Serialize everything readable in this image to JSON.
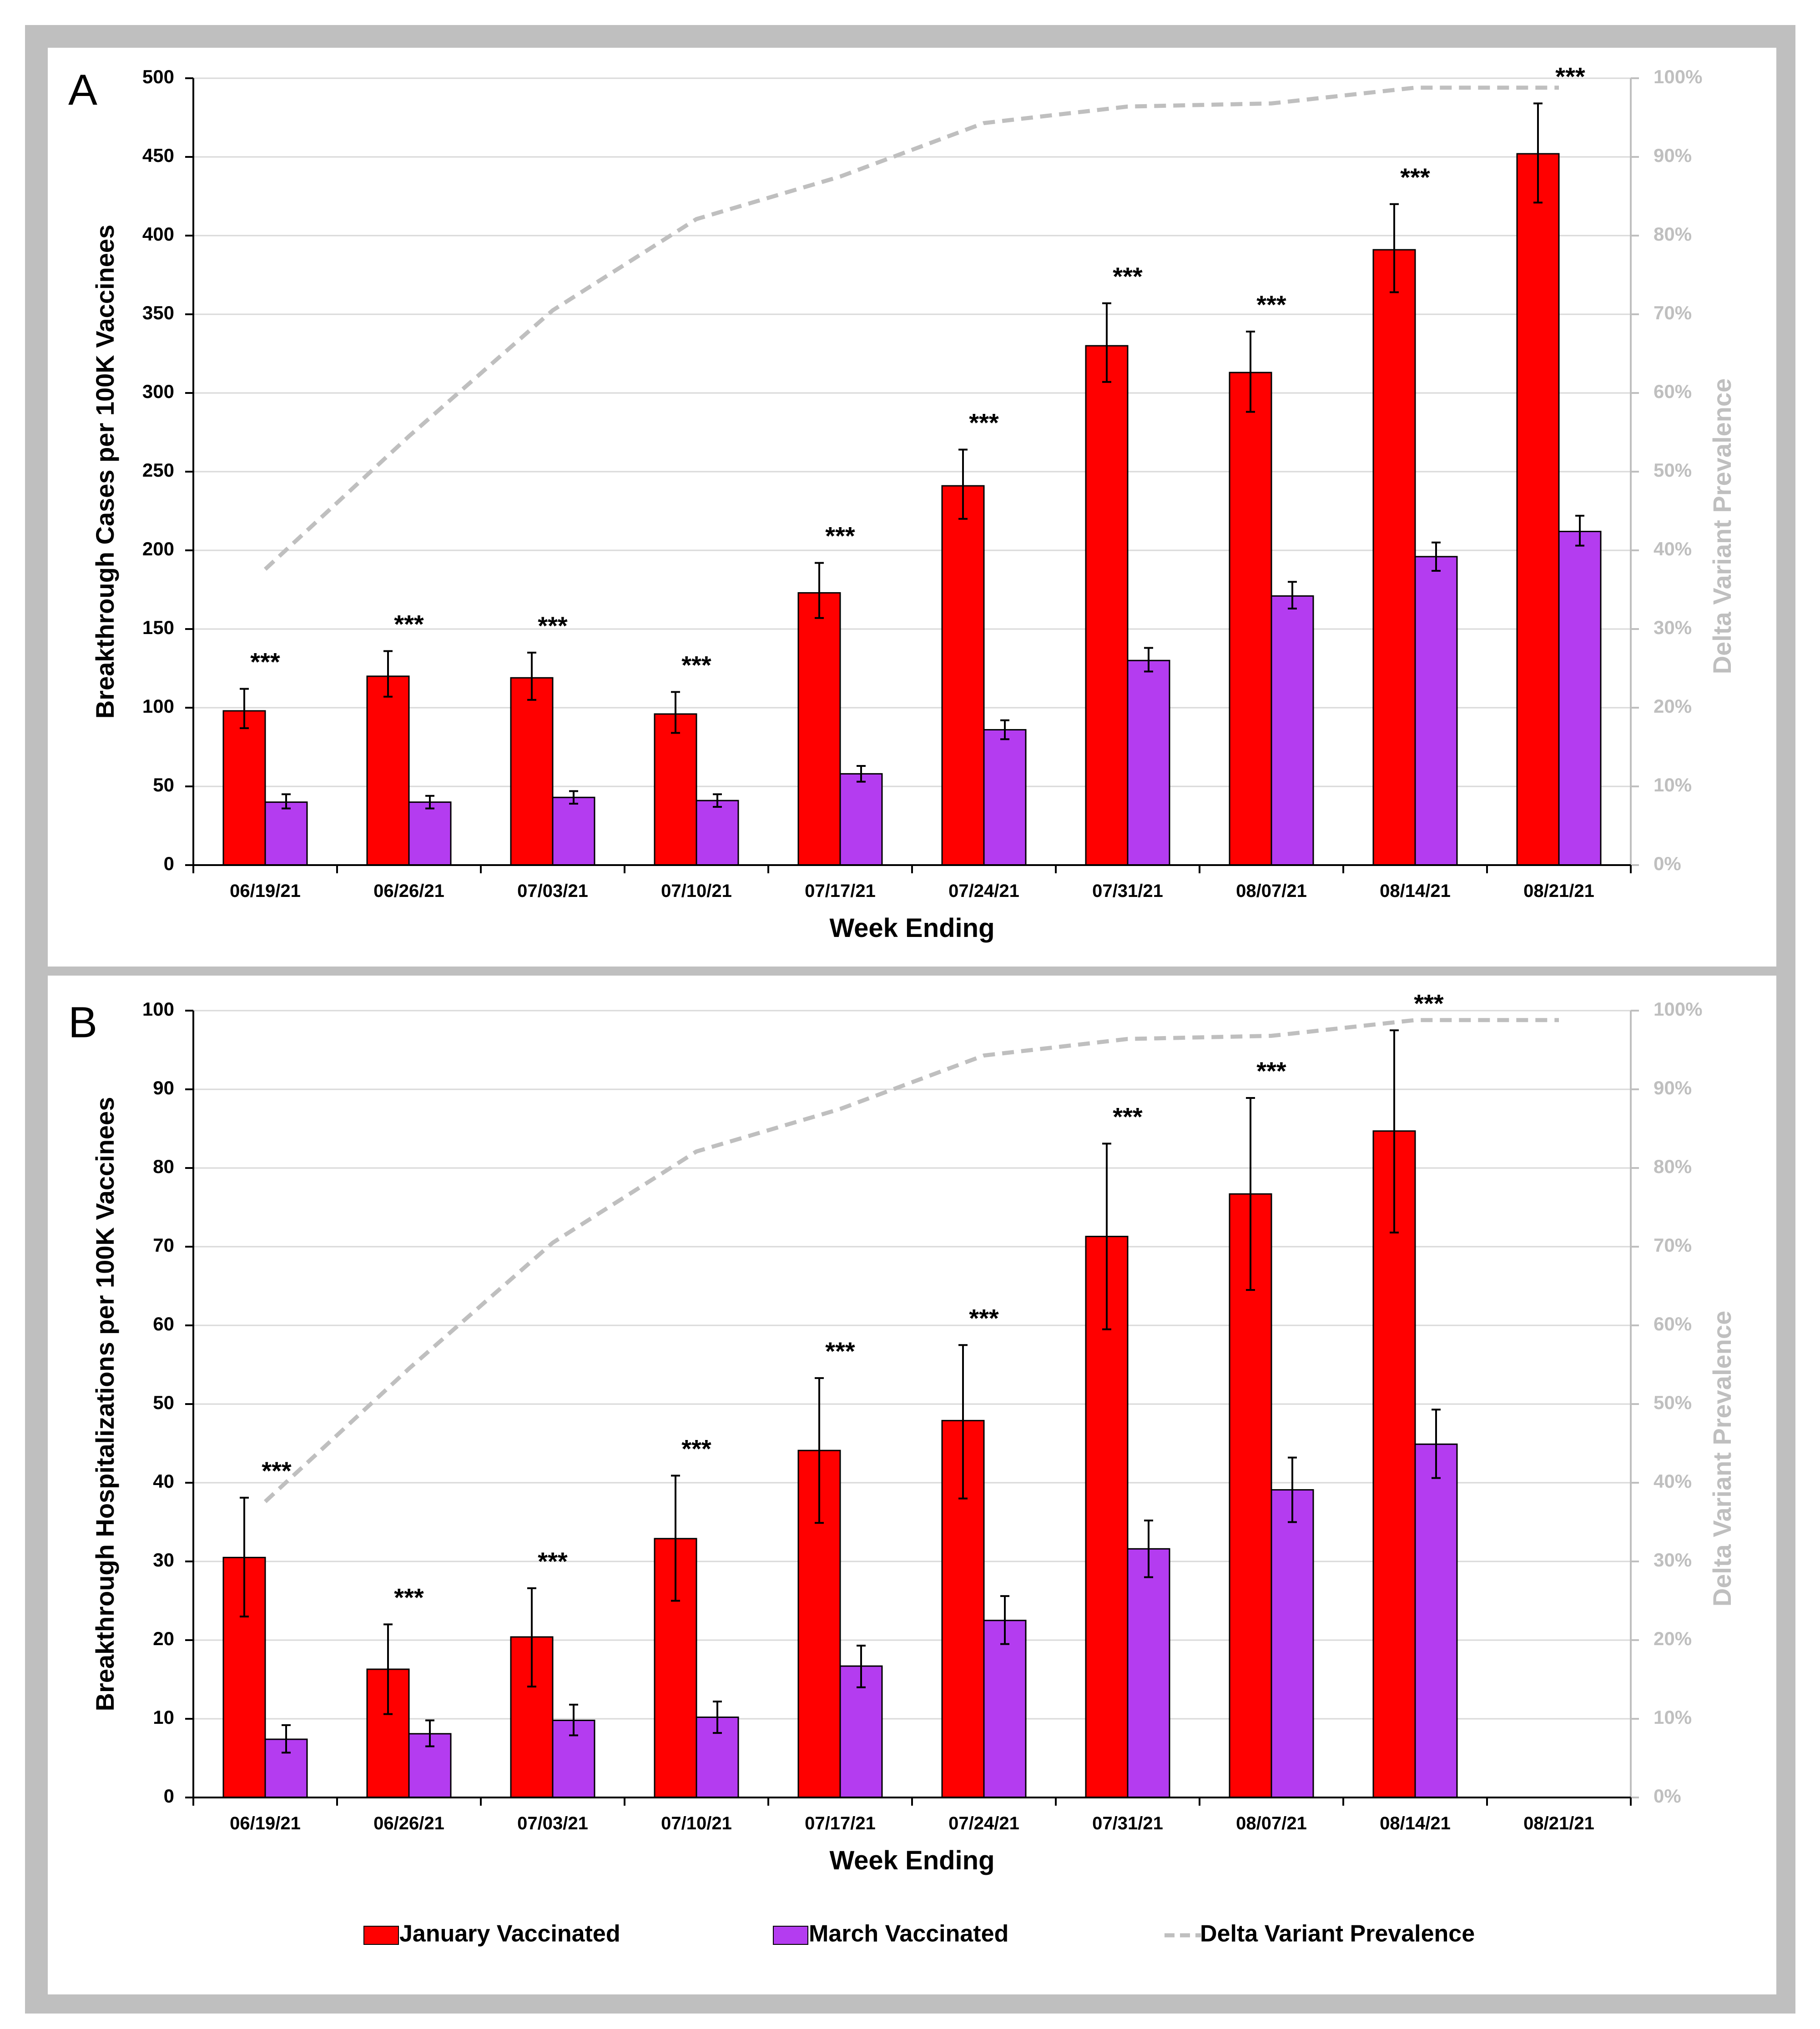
{
  "legend": {
    "items": [
      {
        "label": "January Vaccinated",
        "color": "#ff0000",
        "kind": "bar"
      },
      {
        "label": "March Vaccinated",
        "color": "#b43cf0",
        "kind": "bar"
      },
      {
        "label": "Delta Variant Prevalence",
        "color": "#bfbfbf",
        "kind": "dashed-line"
      }
    ],
    "position": "bottom"
  },
  "chart_data": [
    {
      "type": "bar",
      "panel_label": "A",
      "xlabel": "Week Ending",
      "ylabel": "Breakthrough Cases per 100K Vaccinees",
      "y2label": "Delta Variant Prevalence",
      "ylim": [
        0,
        500
      ],
      "yticks": [
        "0",
        "50",
        "100",
        "150",
        "200",
        "250",
        "300",
        "350",
        "400",
        "450",
        "500"
      ],
      "y2lim": [
        0,
        100
      ],
      "y2ticks": [
        "0%",
        "10%",
        "20%",
        "30%",
        "40%",
        "50%",
        "60%",
        "70%",
        "80%",
        "90%",
        "100%"
      ],
      "grid": true,
      "categories": [
        "06/19/21",
        "06/26/21",
        "07/03/21",
        "07/10/21",
        "07/17/21",
        "07/24/21",
        "07/31/21",
        "08/07/21",
        "08/14/21",
        "08/21/21"
      ],
      "series": [
        {
          "name": "January Vaccinated",
          "color": "#ff0000",
          "values": [
            98,
            120,
            119,
            96,
            173,
            241,
            330,
            313,
            391,
            452
          ],
          "err_low": [
            87,
            107,
            105,
            84,
            157,
            220,
            307,
            288,
            364,
            421
          ],
          "err_high": [
            112,
            136,
            135,
            110,
            192,
            264,
            357,
            339,
            420,
            484
          ]
        },
        {
          "name": "March Vaccinated",
          "color": "#b43cf0",
          "values": [
            40,
            40,
            43,
            41,
            58,
            86,
            130,
            171,
            196,
            212
          ],
          "err_low": [
            36,
            36,
            39,
            37,
            53,
            80,
            123,
            163,
            187,
            203
          ],
          "err_high": [
            45,
            44,
            47,
            45,
            63,
            92,
            138,
            180,
            205,
            222
          ]
        },
        {
          "name": "Delta Variant Prevalence",
          "color": "#bfbfbf",
          "axis": "right",
          "values": [
            37.6,
            54.5,
            70.5,
            82.1,
            87.5,
            94.3,
            96.4,
            96.8,
            98.8,
            98.8
          ]
        }
      ],
      "significance": [
        "***",
        "***",
        "***",
        "***",
        "***",
        "***",
        "***",
        "***",
        "***",
        "***"
      ]
    },
    {
      "type": "bar",
      "panel_label": "B",
      "xlabel": "Week Ending",
      "ylabel": "Breakthrough Hospitalizations per 100K Vaccinees",
      "y2label": "Delta Variant Prevalence",
      "ylim": [
        0,
        100
      ],
      "yticks": [
        "0",
        "10",
        "20",
        "30",
        "40",
        "50",
        "60",
        "70",
        "80",
        "90",
        "100"
      ],
      "y2lim": [
        0,
        100
      ],
      "y2ticks": [
        "0%",
        "10%",
        "20%",
        "30%",
        "40%",
        "50%",
        "60%",
        "70%",
        "80%",
        "90%",
        "100%"
      ],
      "grid": true,
      "categories": [
        "06/19/21",
        "06/26/21",
        "07/03/21",
        "07/10/21",
        "07/17/21",
        "07/24/21",
        "07/31/21",
        "08/07/21",
        "08/14/21",
        "08/21/21"
      ],
      "series": [
        {
          "name": "January Vaccinated",
          "color": "#ff0000",
          "values": [
            30.5,
            16.3,
            20.4,
            32.9,
            44.1,
            47.9,
            71.3,
            76.7,
            84.7,
            null
          ],
          "err_low": [
            23.0,
            10.6,
            14.1,
            25.0,
            34.9,
            38.0,
            59.5,
            64.5,
            71.8,
            null
          ],
          "err_high": [
            38.1,
            22.0,
            26.6,
            40.9,
            53.3,
            57.5,
            83.1,
            88.9,
            97.5,
            null
          ]
        },
        {
          "name": "March Vaccinated",
          "color": "#b43cf0",
          "values": [
            7.4,
            8.1,
            9.8,
            10.2,
            16.7,
            22.5,
            31.6,
            39.1,
            44.9,
            null
          ],
          "err_low": [
            5.7,
            6.5,
            7.9,
            8.2,
            14.0,
            19.5,
            28.0,
            35.0,
            40.6,
            null
          ],
          "err_high": [
            9.2,
            9.8,
            11.8,
            12.2,
            19.3,
            25.6,
            35.2,
            43.2,
            49.3,
            null
          ]
        },
        {
          "name": "Delta Variant Prevalence",
          "color": "#bfbfbf",
          "axis": "right",
          "values": [
            37.6,
            54.5,
            70.5,
            82.1,
            87.5,
            94.3,
            96.4,
            96.8,
            98.8,
            98.8
          ]
        }
      ],
      "significance": [
        "***",
        "***",
        "***",
        "***",
        "***",
        "***",
        "***",
        "***",
        "***",
        null
      ]
    }
  ]
}
